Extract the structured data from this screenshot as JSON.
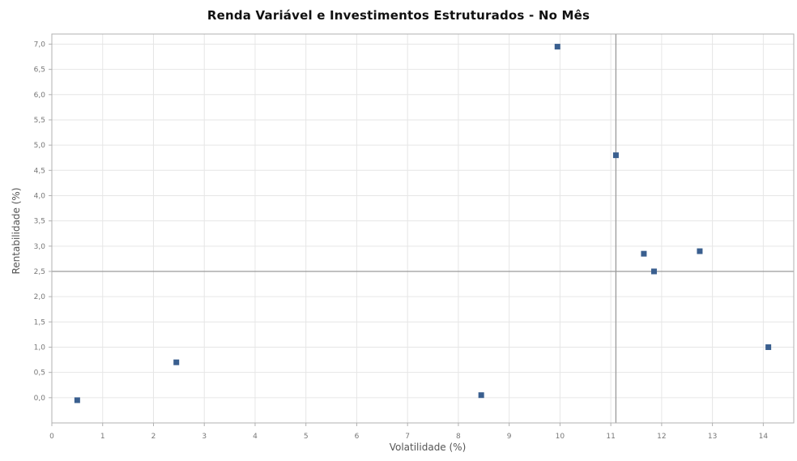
{
  "chart_data": {
    "type": "scatter",
    "title": "Renda Variável e Investimentos Estruturados - No Mês",
    "xlabel": "Volatilidade (%)",
    "ylabel": "Rentabilidade (%)",
    "xlim": [
      0,
      14.6
    ],
    "ylim": [
      -0.5,
      7.2
    ],
    "x_ticks": [
      0,
      1,
      2,
      3,
      4,
      5,
      6,
      7,
      8,
      9,
      10,
      11,
      12,
      13,
      14
    ],
    "x_tick_labels": [
      "0",
      "1",
      "2",
      "3",
      "4",
      "5",
      "6",
      "7",
      "8",
      "9",
      "10",
      "11",
      "12",
      "13",
      "14"
    ],
    "y_ticks": [
      0.0,
      0.5,
      1.0,
      1.5,
      2.0,
      2.5,
      3.0,
      3.5,
      4.0,
      4.5,
      5.0,
      5.5,
      6.0,
      6.5,
      7.0
    ],
    "y_tick_labels": [
      "0,0",
      "0,5",
      "1,0",
      "1,5",
      "2,0",
      "2,5",
      "3,0",
      "3,5",
      "4,0",
      "4,5",
      "5,0",
      "5,5",
      "6,0",
      "6,5",
      "7,0"
    ],
    "grid": true,
    "reference_lines": {
      "x": 11.1,
      "y": 2.5
    },
    "series": [
      {
        "color": "#3a5f8f",
        "points": [
          {
            "x": 0.5,
            "y": -0.05
          },
          {
            "x": 2.45,
            "y": 0.7
          },
          {
            "x": 8.45,
            "y": 0.05
          },
          {
            "x": 9.95,
            "y": 6.95
          },
          {
            "x": 11.1,
            "y": 4.8
          },
          {
            "x": 11.65,
            "y": 2.85
          },
          {
            "x": 11.85,
            "y": 2.5
          },
          {
            "x": 12.75,
            "y": 2.9
          },
          {
            "x": 14.1,
            "y": 1.0
          }
        ]
      }
    ],
    "colors": {
      "grid": "#e6e6e6",
      "axis": "#b0b0b0",
      "reference": "#9a9a9a",
      "marker": "#3a5f8f"
    }
  }
}
